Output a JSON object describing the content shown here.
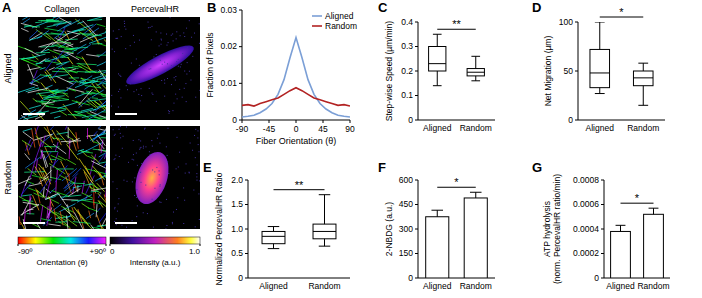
{
  "panel_a": {
    "panel": "A",
    "columns": [
      "Collagen",
      "PercevalHR"
    ],
    "rows": [
      "Aligned",
      "Random"
    ],
    "colorbars": [
      {
        "label": "Orientation (θ)",
        "range": [
          -90,
          90
        ],
        "ticks": [
          {
            "value": -90,
            "label": "-90º"
          },
          {
            "value": 90,
            "label": "+90º"
          }
        ]
      },
      {
        "label": "Intensity (a.u.)",
        "range": [
          0,
          1
        ],
        "ticks": [
          0,
          {
            "value": 1,
            "label": "1.0"
          }
        ]
      }
    ]
  },
  "chart_data": [
    {
      "panel": "B",
      "type": "line",
      "x_label": "Fiber Orientation (θ)",
      "y_label": "Fraction of Pixels",
      "x": [
        -90,
        -80,
        -70,
        -60,
        -50,
        -40,
        -30,
        -20,
        -10,
        0,
        10,
        20,
        30,
        40,
        50,
        60,
        70,
        80,
        90
      ],
      "series": [
        {
          "name": "Aligned",
          "color": "#7b9fd6",
          "values": [
            0.0008,
            0.001,
            0.0013,
            0.002,
            0.003,
            0.0045,
            0.007,
            0.011,
            0.017,
            0.0225,
            0.017,
            0.011,
            0.007,
            0.0045,
            0.003,
            0.002,
            0.0013,
            0.001,
            0.0008
          ]
        },
        {
          "name": "Random",
          "color": "#b22222",
          "values": [
            0.004,
            0.0042,
            0.0038,
            0.0045,
            0.005,
            0.0055,
            0.006,
            0.007,
            0.008,
            0.0088,
            0.008,
            0.007,
            0.006,
            0.0055,
            0.005,
            0.0045,
            0.004,
            0.0042,
            0.0038
          ]
        }
      ],
      "xlim": [
        -90,
        90
      ],
      "xticks": [
        -90,
        -45,
        0,
        45,
        90
      ],
      "ylim": [
        0,
        0.03
      ],
      "yticks": [
        0,
        0.01,
        0.02,
        0.03
      ],
      "legend": "upper right"
    },
    {
      "panel": "C",
      "type": "box",
      "y_label": "Step-wise Speed (µm/min)",
      "categories": [
        "Aligned",
        "Random"
      ],
      "min": [
        0.14,
        0.16
      ],
      "q1": [
        0.2,
        0.18
      ],
      "median": [
        0.23,
        0.195
      ],
      "q3": [
        0.3,
        0.21
      ],
      "max": [
        0.35,
        0.26
      ],
      "ylim": [
        0,
        0.4
      ],
      "yticks": [
        0,
        0.1,
        0.2,
        0.3,
        0.4
      ],
      "annotation": "**"
    },
    {
      "panel": "D",
      "type": "box",
      "y_label": "Net Migration (µm)",
      "categories": [
        "Aligned",
        "Random"
      ],
      "min": [
        27,
        15
      ],
      "q1": [
        33,
        35
      ],
      "median": [
        48,
        43
      ],
      "q3": [
        72,
        50
      ],
      "max": [
        100,
        58
      ],
      "ylim": [
        0,
        100
      ],
      "yticks": [
        0,
        50,
        100
      ],
      "annotation": "*"
    },
    {
      "panel": "E",
      "type": "box",
      "y_label": "Normalized PercevalHR Ratio",
      "categories": [
        "Aligned",
        "Random"
      ],
      "min": [
        0.6,
        0.65
      ],
      "q1": [
        0.7,
        0.8
      ],
      "median": [
        0.85,
        0.95
      ],
      "q3": [
        0.95,
        1.1
      ],
      "max": [
        1.05,
        1.7
      ],
      "ylim": [
        0,
        2
      ],
      "yticks": [
        0,
        0.5,
        {
          "value": 1,
          "label": "1.0"
        },
        1.5,
        {
          "value": 2,
          "label": "2.0"
        }
      ],
      "annotation": "**"
    },
    {
      "panel": "F",
      "type": "bar",
      "y_label": "2-NBDG (a.u.)",
      "categories": [
        "Aligned",
        "Random"
      ],
      "values": [
        375,
        490
      ],
      "errors": [
        40,
        35
      ],
      "ylim": [
        0,
        600
      ],
      "yticks": [
        0,
        150,
        300,
        450,
        600
      ],
      "annotation": "*"
    },
    {
      "panel": "G",
      "type": "bar",
      "y_label": "ATP hydrolysis (norm. PercevalHR ratio/min)",
      "categories": [
        "Aligned",
        "Random"
      ],
      "values": [
        0.00038,
        0.00052
      ],
      "errors": [
        5e-05,
        5e-05
      ],
      "ylim": [
        0,
        0.0008
      ],
      "yticks": [
        0,
        0.0002,
        0.0004,
        0.0006,
        0.0008
      ],
      "annotation": "*"
    }
  ]
}
